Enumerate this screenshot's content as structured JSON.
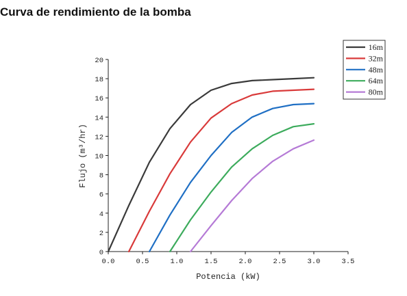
{
  "page": {
    "title": "Curva de rendimiento de la bomba"
  },
  "chart_data": {
    "type": "line",
    "title": "",
    "xlabel": "Potencia (kW)",
    "ylabel": "Flujo (m³/hr)",
    "xlim": [
      0,
      3.5
    ],
    "ylim": [
      0,
      20
    ],
    "xticks": [
      "0.0",
      "0.5",
      "1.0",
      "1.5",
      "2.0",
      "2.5",
      "3.0",
      "3.5"
    ],
    "yticks": [
      "0",
      "2",
      "4",
      "6",
      "8",
      "10",
      "12",
      "14",
      "16",
      "18",
      "20"
    ],
    "grid": false,
    "legend_position": "top-right",
    "series": [
      {
        "name": "16m",
        "color": "#3a3a3a",
        "x": [
          0.0,
          0.3,
          0.6,
          0.9,
          1.2,
          1.5,
          1.8,
          2.1,
          2.4,
          2.7,
          3.0
        ],
        "y": [
          0.0,
          4.8,
          9.3,
          12.8,
          15.3,
          16.8,
          17.5,
          17.8,
          17.9,
          18.0,
          18.1
        ]
      },
      {
        "name": "32m",
        "color": "#d93a3a",
        "x": [
          0.3,
          0.6,
          0.9,
          1.2,
          1.5,
          1.8,
          2.1,
          2.4,
          2.7,
          3.0
        ],
        "y": [
          0.0,
          4.2,
          8.1,
          11.4,
          13.9,
          15.4,
          16.3,
          16.7,
          16.8,
          16.9
        ]
      },
      {
        "name": "48m",
        "color": "#1f6fc4",
        "x": [
          0.6,
          0.9,
          1.2,
          1.5,
          1.8,
          2.1,
          2.4,
          2.7,
          3.0
        ],
        "y": [
          0.0,
          3.8,
          7.2,
          10.0,
          12.4,
          14.0,
          14.9,
          15.3,
          15.4
        ]
      },
      {
        "name": "64m",
        "color": "#3cab5c",
        "x": [
          0.9,
          1.2,
          1.5,
          1.8,
          2.1,
          2.4,
          2.7,
          3.0
        ],
        "y": [
          0.0,
          3.3,
          6.2,
          8.8,
          10.7,
          12.1,
          13.0,
          13.3
        ]
      },
      {
        "name": "80m",
        "color": "#b57ad6",
        "x": [
          1.2,
          1.5,
          1.8,
          2.1,
          2.4,
          2.7,
          3.0
        ],
        "y": [
          0.0,
          2.7,
          5.3,
          7.6,
          9.4,
          10.7,
          11.6
        ]
      }
    ]
  }
}
